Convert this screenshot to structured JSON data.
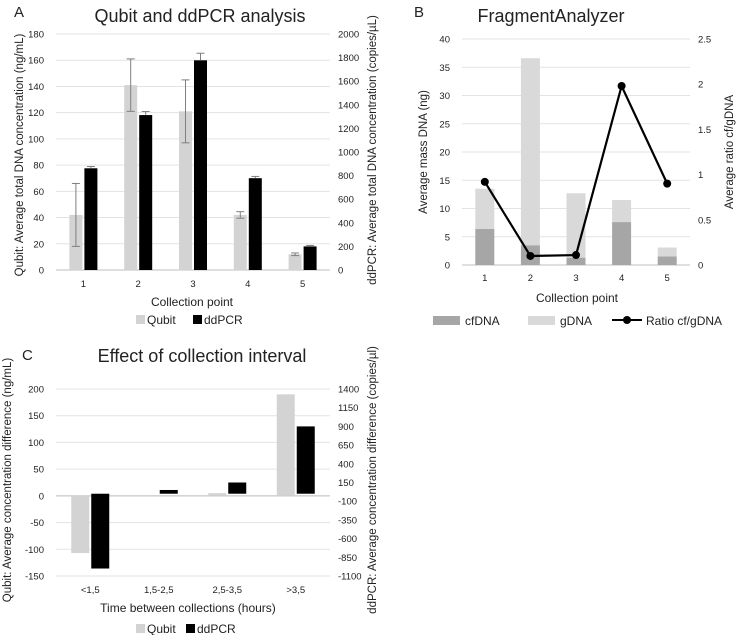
{
  "figure": {
    "panels": [
      {
        "letter": "A",
        "title": "Qubit and ddPCR analysis"
      },
      {
        "letter": "B",
        "title": "FragmentAnalyzer"
      },
      {
        "letter": "C",
        "title": "Effect of collection interval"
      }
    ]
  },
  "colors": {
    "qubit": "#d3d3d3",
    "ddpcr": "#000000",
    "cfdna": "#a6a6a6",
    "gdna": "#d9d9d9",
    "ratio": "#000000",
    "grid": "#e3e3e3",
    "axis": "#bfbfbf"
  },
  "chart_data": [
    {
      "panel": "A",
      "type": "bar",
      "title": "Qubit and ddPCR analysis",
      "xlabel": "Collection point",
      "ylabel": "Qubit: Average total DNA concentration (ng/mL)",
      "y2label": "ddPCR: Average total DNA concentration (copies/µL)",
      "categories": [
        "1",
        "2",
        "3",
        "4",
        "5"
      ],
      "ylim": [
        0,
        180
      ],
      "y2lim": [
        0,
        2000
      ],
      "yticks": [
        0,
        20,
        40,
        60,
        80,
        100,
        120,
        140,
        160,
        180
      ],
      "y2ticks": [
        0,
        200,
        400,
        600,
        800,
        1000,
        1200,
        1400,
        1600,
        1800,
        2000
      ],
      "series": [
        {
          "name": "Qubit",
          "axis": "left",
          "values": [
            42,
            141,
            121,
            42,
            12
          ],
          "errors": [
            24,
            20,
            24,
            2.5,
            1
          ]
        },
        {
          "name": "ddPCR",
          "axis": "right",
          "values": [
            862,
            1313,
            1777,
            778,
            200
          ],
          "errors": [
            15,
            30,
            60,
            15,
            8
          ]
        }
      ],
      "legend": [
        "Qubit",
        "ddPCR"
      ]
    },
    {
      "panel": "B",
      "type": "bar",
      "title": "FragmentAnalyzer",
      "xlabel": "Collection point",
      "ylabel": "Average mass DNA (ng)",
      "y2label": "Average ratio cf/gDNA",
      "categories": [
        "1",
        "2",
        "3",
        "4",
        "5"
      ],
      "ylim": [
        0,
        40
      ],
      "y2lim": [
        0,
        2.5
      ],
      "yticks": [
        0,
        5,
        10,
        15,
        20,
        25,
        30,
        35,
        40
      ],
      "y2ticks": [
        "0",
        "0.5",
        "1",
        "1.5",
        "2",
        "2.5"
      ],
      "series": [
        {
          "name": "cfDNA",
          "stack": "mass",
          "values": [
            6.4,
            3.5,
            1.3,
            7.6,
            1.5
          ]
        },
        {
          "name": "gDNA",
          "stack": "mass",
          "values": [
            7.1,
            33.1,
            11.4,
            3.9,
            1.6
          ]
        },
        {
          "name": "Ratio cf/gDNA",
          "type": "line",
          "axis": "right",
          "values": [
            0.92,
            0.1,
            0.11,
            1.98,
            0.9
          ]
        }
      ],
      "legend": [
        "cfDNA",
        "gDNA",
        "Ratio cf/gDNA"
      ]
    },
    {
      "panel": "C",
      "type": "bar",
      "title": "Effect of collection interval",
      "xlabel": "Time between collections (hours)",
      "ylabel": "Qubit: Average concentration difference (ng/mL)",
      "y2label": "ddPCR: Average concentration difference (copies/µl)",
      "categories": [
        "<1,5",
        "1,5-2,5",
        "2,5-3,5",
        ">3,5"
      ],
      "ylim": [
        -150,
        200
      ],
      "y2lim": [
        -1100,
        1400
      ],
      "yticks": [
        -150,
        -100,
        -50,
        0,
        50,
        100,
        150,
        200
      ],
      "y2ticks": [
        -1100,
        -850,
        -600,
        -350,
        -100,
        150,
        400,
        650,
        900,
        1150,
        1400
      ],
      "series": [
        {
          "name": "Qubit",
          "axis": "left",
          "values": [
            -107,
            0,
            5,
            190
          ]
        },
        {
          "name": "ddPCR",
          "axis": "right",
          "values": [
            -1000,
            50,
            150,
            900
          ]
        }
      ],
      "legend": [
        "Qubit",
        "ddPCR"
      ]
    }
  ]
}
